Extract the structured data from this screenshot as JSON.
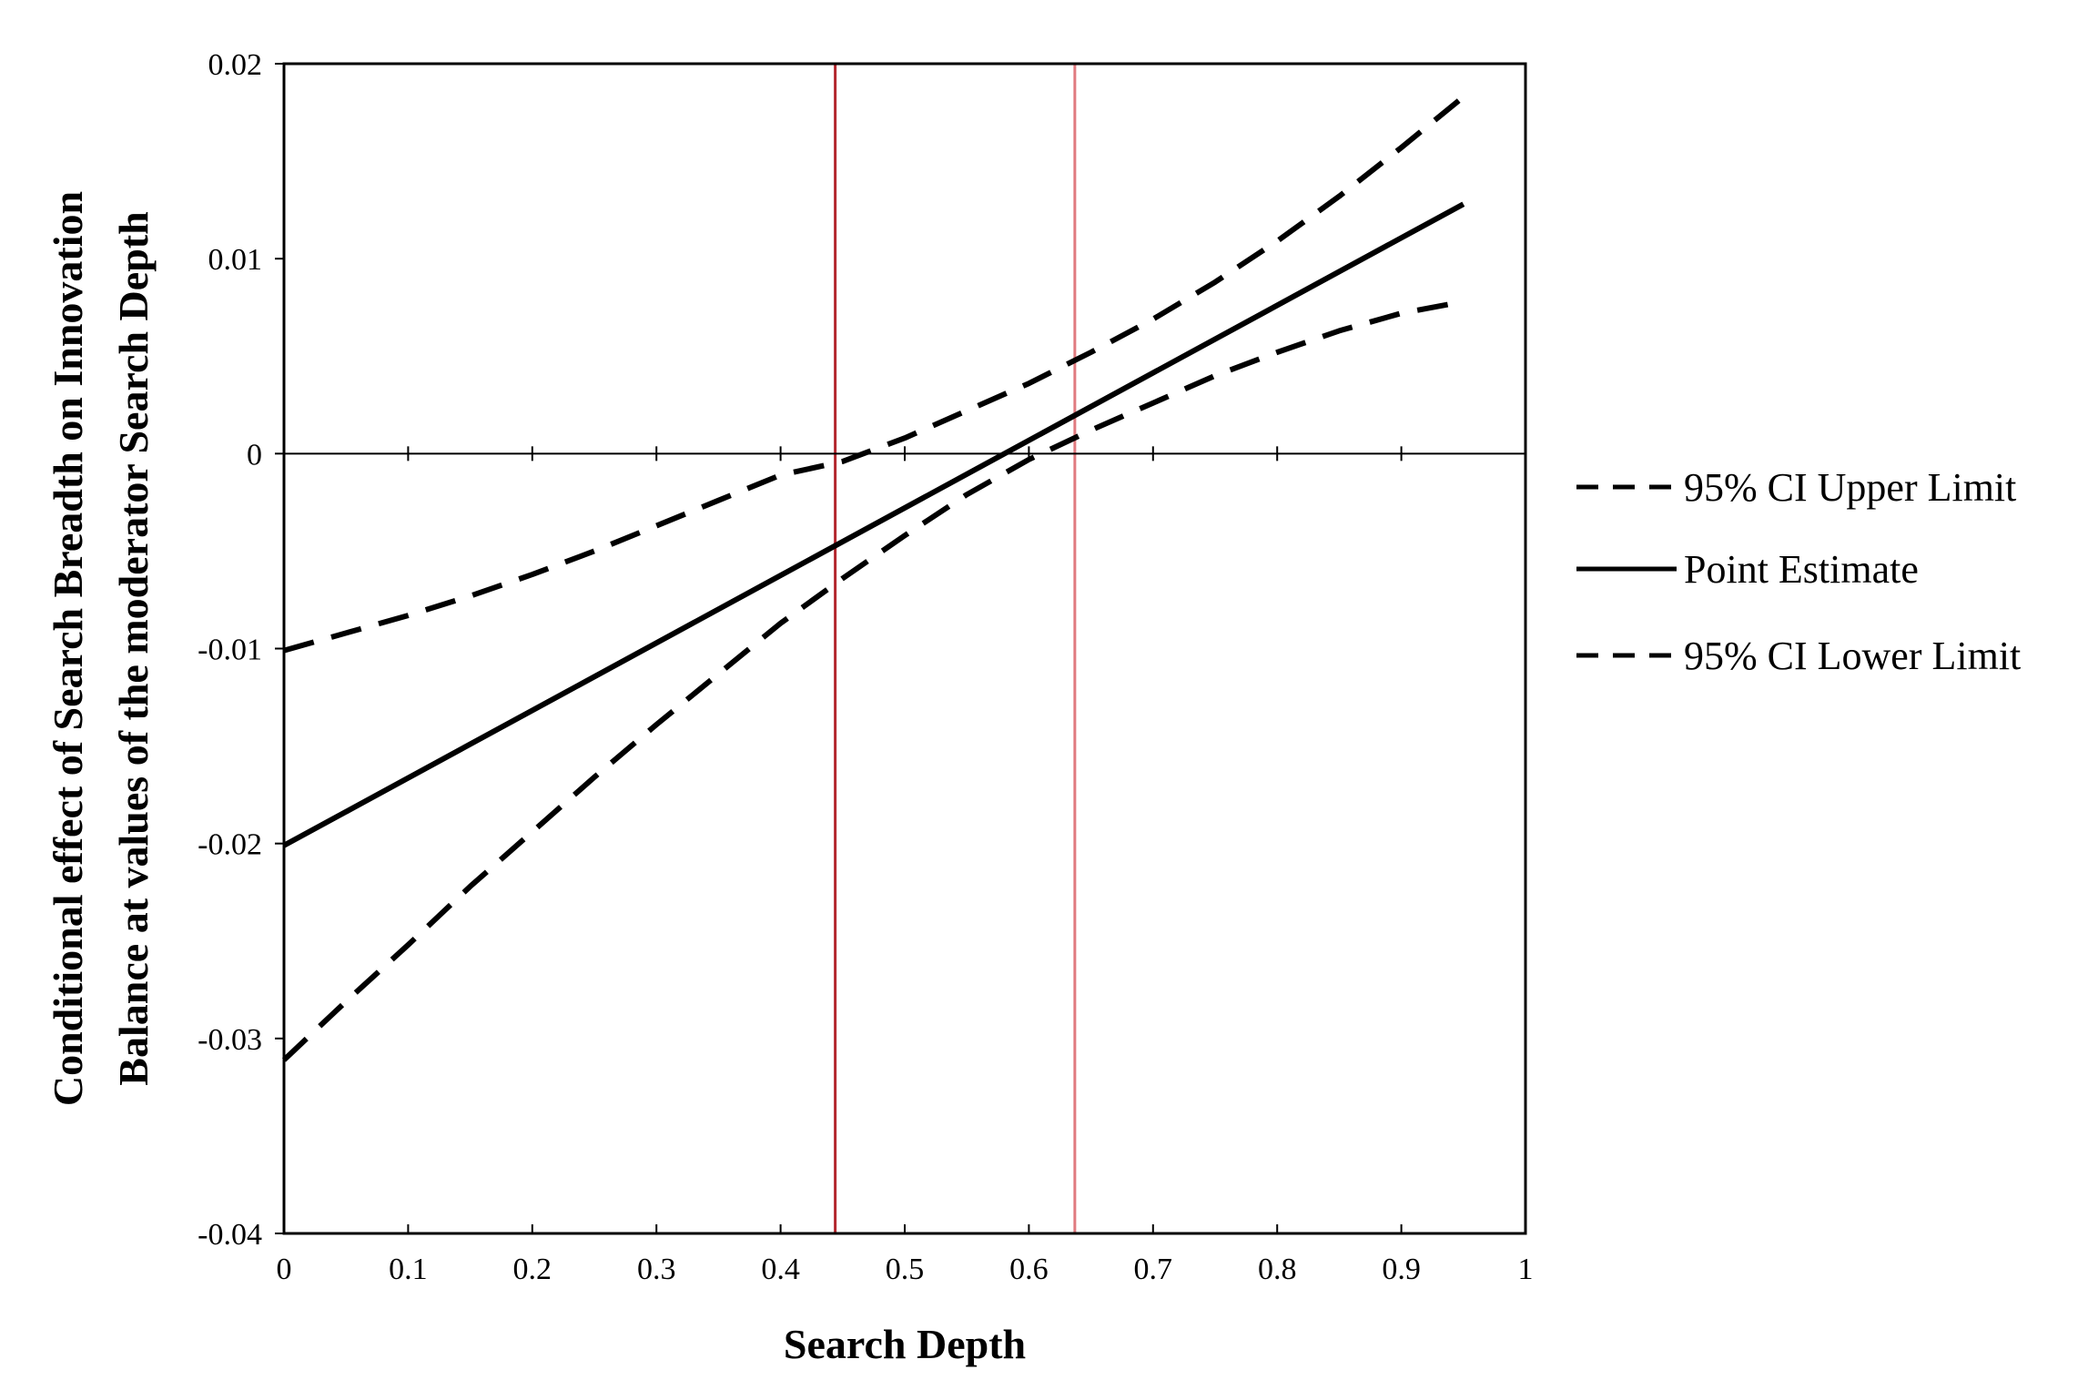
{
  "chart_data": {
    "type": "line",
    "title": "",
    "xlabel": "Search Depth",
    "ylabel_lines": [
      "Conditional effect of Search Breadth on Innovation",
      "Balance at values of the moderator Search Depth"
    ],
    "xlim": [
      0,
      1
    ],
    "ylim": [
      -0.04,
      0.02
    ],
    "x_ticks": [
      0,
      0.1,
      0.2,
      0.3,
      0.4,
      0.5,
      0.6,
      0.7,
      0.8,
      0.9,
      1
    ],
    "x_tick_labels": [
      "0",
      "0.1",
      "0.2",
      "0.3",
      "0.4",
      "0.5",
      "0.6",
      "0.7",
      "0.8",
      "0.9",
      "1"
    ],
    "y_ticks": [
      0.02,
      0.01,
      0,
      -0.01,
      -0.02,
      -0.03,
      -0.04
    ],
    "y_tick_labels": [
      "0.02",
      "0.01",
      "0",
      "-0.01",
      "-0.02",
      "-0.03",
      "-0.04"
    ],
    "grid": false,
    "zero_line": true,
    "legend_position": "right",
    "reference_lines": [
      {
        "x": 0.444,
        "color": "#b3262d"
      },
      {
        "x": 0.637,
        "color": "#e07b80"
      }
    ],
    "series": [
      {
        "name": "95% CI Upper Limit",
        "style": "dashed",
        "color": "#000000",
        "x": [
          0,
          0.05,
          0.1,
          0.15,
          0.2,
          0.25,
          0.3,
          0.35,
          0.4,
          0.45,
          0.5,
          0.55,
          0.6,
          0.65,
          0.7,
          0.75,
          0.8,
          0.85,
          0.9,
          0.95
        ],
        "y": [
          -0.0101,
          -0.0092,
          -0.0083,
          -0.0073,
          -0.0062,
          -0.005,
          -0.0037,
          -0.0024,
          -0.0011,
          -0.0004,
          0.0008,
          0.0022,
          0.0036,
          0.0052,
          0.0069,
          0.0088,
          0.0109,
          0.0132,
          0.0157,
          0.0183
        ]
      },
      {
        "name": "Point Estimate",
        "style": "solid",
        "color": "#000000",
        "x": [
          0,
          0.95
        ],
        "y": [
          -0.0201,
          0.0128
        ]
      },
      {
        "name": "95% CI Lower Limit",
        "style": "dashed",
        "color": "#000000",
        "x": [
          0,
          0.05,
          0.1,
          0.15,
          0.2,
          0.25,
          0.3,
          0.35,
          0.4,
          0.45,
          0.5,
          0.55,
          0.6,
          0.65,
          0.7,
          0.75,
          0.8,
          0.85,
          0.9,
          0.95
        ],
        "y": [
          -0.0311,
          -0.0281,
          -0.0252,
          -0.0222,
          -0.0194,
          -0.0166,
          -0.0139,
          -0.0113,
          -0.0087,
          -0.0064,
          -0.0042,
          -0.0021,
          -0.0003,
          0.0012,
          0.0026,
          0.004,
          0.0052,
          0.0063,
          0.0072,
          0.0078
        ]
      }
    ]
  }
}
